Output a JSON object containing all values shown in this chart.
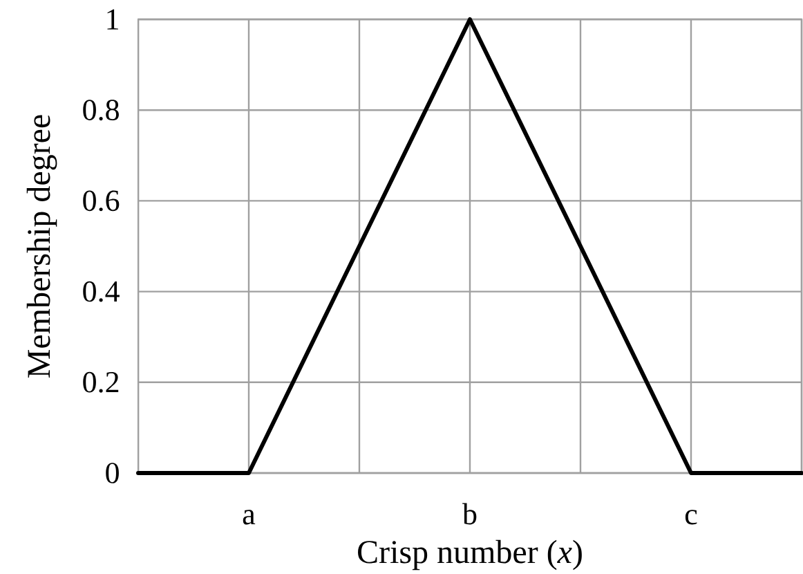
{
  "chart_data": {
    "type": "line",
    "xlabel": "Crisp number (*x*)",
    "ylabel": "Membership degree",
    "categories": [
      null,
      "a",
      null,
      "b",
      null,
      "c",
      null
    ],
    "series": [
      {
        "color": "#000000",
        "values": [
          0,
          0,
          0.5,
          1,
          0.5,
          0,
          0
        ]
      }
    ],
    "ylim": [
      0,
      1
    ],
    "yticks": [
      0,
      0.2,
      0.4,
      0.6,
      0.8,
      1
    ],
    "grid": true,
    "marker": "none",
    "line_style": "solid"
  }
}
